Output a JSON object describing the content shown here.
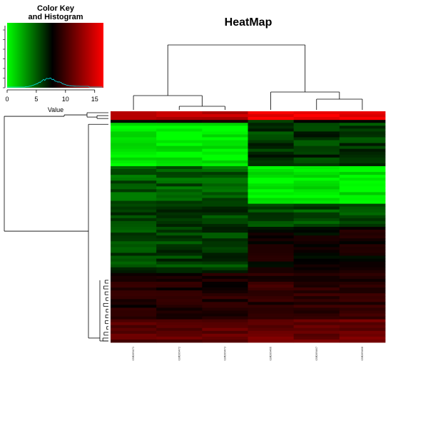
{
  "chart_data": {
    "type": "heatmap",
    "title": "HeatMap",
    "color_key": {
      "title_line1": "Color Key",
      "title_line2": "and Histogram",
      "xlabel": "Value",
      "ticks": [
        0,
        5,
        10,
        15
      ],
      "range": [
        0,
        16.5
      ],
      "colors": [
        "#00ff00",
        "#000000",
        "#ff0000"
      ],
      "histogram_color": "#00ffff"
    },
    "columns": [
      "GSM209471",
      "GSM209472",
      "GSM209473",
      "GSM209466",
      "GSM209467",
      "GSM209468"
    ],
    "column_dendrogram": true,
    "row_dendrogram": true,
    "rows": 80,
    "value_min": 0,
    "value_max": 16.5
  }
}
